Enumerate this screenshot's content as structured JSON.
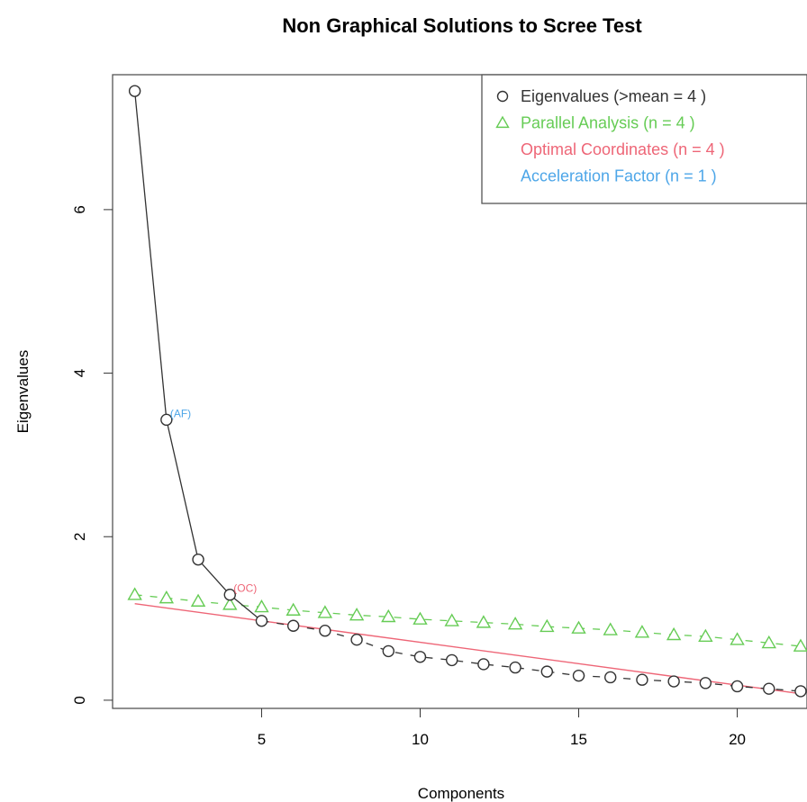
{
  "chart_data": {
    "type": "line",
    "title": "Non Graphical Solutions to Scree Test",
    "xlabel": "Components",
    "ylabel": "Eigenvalues",
    "xlim": [
      0.3,
      22.2
    ],
    "ylim": [
      -0.1,
      7.65
    ],
    "x_ticks": [
      5,
      10,
      15,
      20
    ],
    "y_ticks": [
      0,
      2,
      4,
      6
    ],
    "grid": false,
    "legend_position": "top-right",
    "colors": {
      "eigen": "#333333",
      "parallel": "#66cc55",
      "optimal": "#ee6677",
      "acceleration": "#4da6e8",
      "frame": "#555555"
    },
    "legend": [
      {
        "label": "Eigenvalues (>mean  =  4 )",
        "marker": "circle",
        "color": "#333333"
      },
      {
        "label": "Parallel Analysis (n =  4 )",
        "marker": "triangle",
        "color": "#66cc55"
      },
      {
        "label": "Optimal Coordinates (n =  4 )",
        "marker": "none",
        "color": "#ee6677"
      },
      {
        "label": "Acceleration Factor (n =  1 )",
        "marker": "none",
        "color": "#4da6e8"
      }
    ],
    "series": [
      {
        "name": "Eigenvalues",
        "x": [
          1,
          2,
          3,
          4,
          5,
          6,
          7,
          8,
          9,
          10,
          11,
          12,
          13,
          14,
          15,
          16,
          17,
          18,
          19,
          20,
          21,
          22
        ],
        "values": [
          7.45,
          3.43,
          1.72,
          1.29,
          0.97,
          0.91,
          0.85,
          0.74,
          0.6,
          0.53,
          0.49,
          0.44,
          0.4,
          0.35,
          0.3,
          0.28,
          0.25,
          0.23,
          0.21,
          0.17,
          0.14,
          0.11
        ]
      },
      {
        "name": "Parallel Analysis",
        "x": [
          1,
          2,
          3,
          4,
          5,
          6,
          7,
          8,
          9,
          10,
          11,
          12,
          13,
          14,
          15,
          16,
          17,
          18,
          19,
          20,
          21,
          22
        ],
        "values": [
          1.29,
          1.25,
          1.21,
          1.17,
          1.14,
          1.1,
          1.07,
          1.04,
          1.02,
          0.99,
          0.97,
          0.95,
          0.93,
          0.9,
          0.88,
          0.86,
          0.83,
          0.8,
          0.78,
          0.74,
          0.7,
          0.66
        ]
      },
      {
        "name": "Optimal Coordinates",
        "x": [
          1,
          22
        ],
        "values": [
          1.18,
          0.08
        ]
      }
    ],
    "annotations": [
      {
        "text": "(AF)",
        "x": 2,
        "y": 3.43,
        "color": "#4da6e8"
      },
      {
        "text": "(OC)",
        "x": 4,
        "y": 1.29,
        "color": "#ee6677"
      }
    ]
  }
}
